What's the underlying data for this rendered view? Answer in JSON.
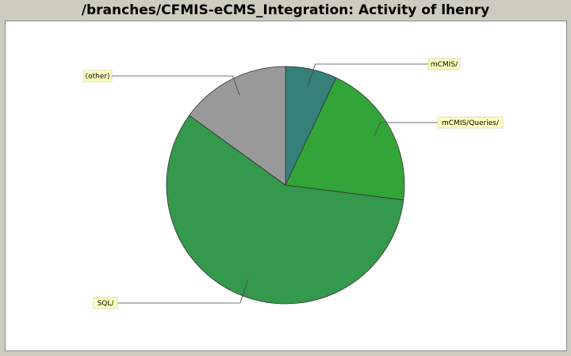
{
  "chart_data": {
    "type": "pie",
    "title": "/branches/CFMIS-eCMS_Integration: Activity of lhenry",
    "slices": [
      {
        "label": "mCMIS/",
        "value": 7,
        "color": "#358078"
      },
      {
        "label": "mCMIS/Queries/",
        "value": 20,
        "color": "#33a538"
      },
      {
        "label": "SQL/",
        "value": 58,
        "color": "#34994d"
      },
      {
        "label": "(other)",
        "value": 15,
        "color": "#999999"
      }
    ],
    "legend": "none",
    "label_style": "callout boxes"
  },
  "colors": {
    "background": "#cdcdbf",
    "plot_background": "#ffffff",
    "label_box": "#ffffc0"
  }
}
